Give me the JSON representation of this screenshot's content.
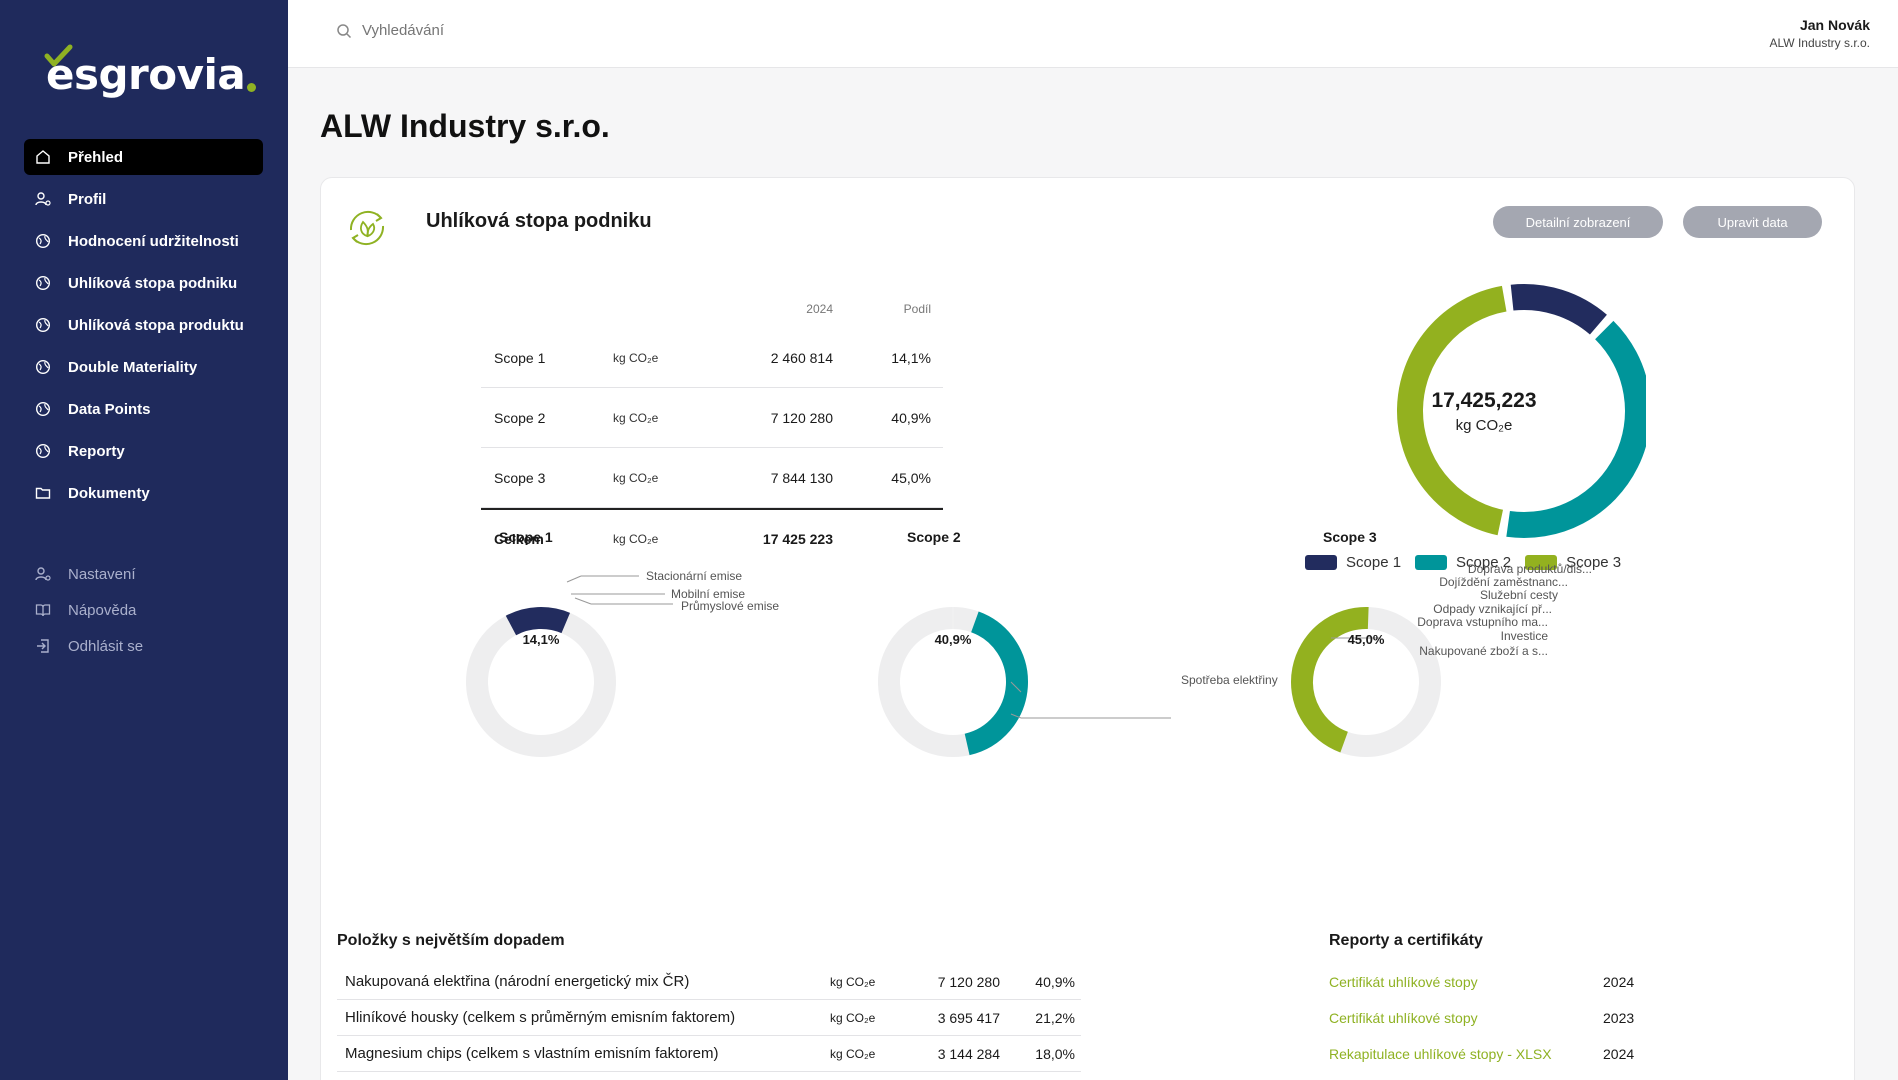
{
  "brand": {
    "logo_text": "esgrovia",
    "accent": "#8fb223",
    "navy": "#1f2a5c",
    "teal": "#00959a",
    "lime": "#93b11f",
    "navy_scope": "#222c5e"
  },
  "sidebar": {
    "items": [
      {
        "label": "Přehled",
        "icon": "home-icon",
        "active": true
      },
      {
        "label": "Profil",
        "icon": "user-icon"
      },
      {
        "label": "Hodnocení udržitelnosti",
        "icon": "globe-icon"
      },
      {
        "label": "Uhlíková stopa podniku",
        "icon": "globe-icon"
      },
      {
        "label": "Uhlíková stopa produktu",
        "icon": "globe-icon"
      },
      {
        "label": "Double Materiality",
        "icon": "globe-icon"
      },
      {
        "label": "Data Points",
        "icon": "globe-icon"
      },
      {
        "label": "Reporty",
        "icon": "globe-icon"
      },
      {
        "label": "Dokumenty",
        "icon": "folder-icon"
      }
    ],
    "secondary": [
      {
        "label": "Nastavení",
        "icon": "user-gear-icon"
      },
      {
        "label": "Nápověda",
        "icon": "book-icon"
      },
      {
        "label": "Odhlásit se",
        "icon": "logout-icon"
      }
    ]
  },
  "topbar": {
    "search_placeholder": "Vyhledávání",
    "user_name": "Jan Novák",
    "user_company": "ALW Industry s.r.o."
  },
  "page": {
    "title": "ALW Industry s.r.o."
  },
  "card": {
    "title": "Uhlíková stopa podniku",
    "detail_button": "Detailní zobrazení",
    "edit_button": "Upravit data"
  },
  "scope_table": {
    "headers": [
      "",
      "",
      "2024",
      "Podíl"
    ],
    "rows": [
      {
        "name": "Scope 1",
        "unit": "kg CO₂e",
        "value": "2 460 814",
        "share": "14,1%"
      },
      {
        "name": "Scope 2",
        "unit": "kg CO₂e",
        "value": "7 120 280",
        "share": "40,9%"
      },
      {
        "name": "Scope 3",
        "unit": "kg CO₂e",
        "value": "7 844 130",
        "share": "45,0%"
      }
    ],
    "total": {
      "name": "Celkem",
      "unit": "kg CO₂e",
      "value": "17 425 223",
      "share": ""
    }
  },
  "chart_data": [
    {
      "type": "pie",
      "variant": "donut",
      "center_value": "17,425,223",
      "center_unit": "kg CO₂e",
      "categories": [
        "Scope 1",
        "Scope 2",
        "Scope 3"
      ],
      "values": [
        14.1,
        40.9,
        45.0
      ],
      "colors": [
        "#222c5e",
        "#00959a",
        "#93b11f"
      ],
      "legend": "bottom"
    },
    {
      "type": "pie",
      "variant": "donut",
      "title": "Scope 1",
      "center_label": "14,1%",
      "share": 14.1,
      "labels": [
        "Stacionární emise",
        "Mobilní emise",
        "Průmyslové emise"
      ],
      "color": "#222c5e"
    },
    {
      "type": "pie",
      "variant": "donut",
      "title": "Scope 2",
      "center_label": "40,9%",
      "share": 40.9,
      "labels": [
        "Spotřeba elektřiny"
      ],
      "color": "#00959a"
    },
    {
      "type": "pie",
      "variant": "donut",
      "title": "Scope 3",
      "center_label": "45,0%",
      "share": 45.0,
      "labels": [
        "Doprava produktů/dis...",
        "Dojíždění zaměstnanc...",
        "Služební cesty",
        "Odpady vznikající př...",
        "Doprava vstupního ma...",
        "Investice",
        "Nakupované zboží a s..."
      ],
      "color": "#93b11f"
    }
  ],
  "impact": {
    "title": "Položky s největším dopadem",
    "rows": [
      {
        "name": "Nakupovaná elektřina (národní energetický mix ČR)",
        "unit": "kg CO₂e",
        "value": "7 120 280",
        "share": "40,9%"
      },
      {
        "name": "Hliníkové housky (celkem s průměrným emisním faktorem)",
        "unit": "kg CO₂e",
        "value": "3 695 417",
        "share": "21,2%"
      },
      {
        "name": "Magnesium chips (celkem s vlastním emisním faktorem)",
        "unit": "kg CO₂e",
        "value": "3 144 284",
        "share": "18,0%"
      }
    ]
  },
  "reports": {
    "title": "Reporty a certifikáty",
    "rows": [
      {
        "name": "Certifikát uhlíkové stopy",
        "year": "2024"
      },
      {
        "name": "Certifikát uhlíkové stopy",
        "year": "2023"
      },
      {
        "name": "Rekapitulace uhlíkové stopy - XLSX",
        "year": "2024"
      }
    ]
  }
}
